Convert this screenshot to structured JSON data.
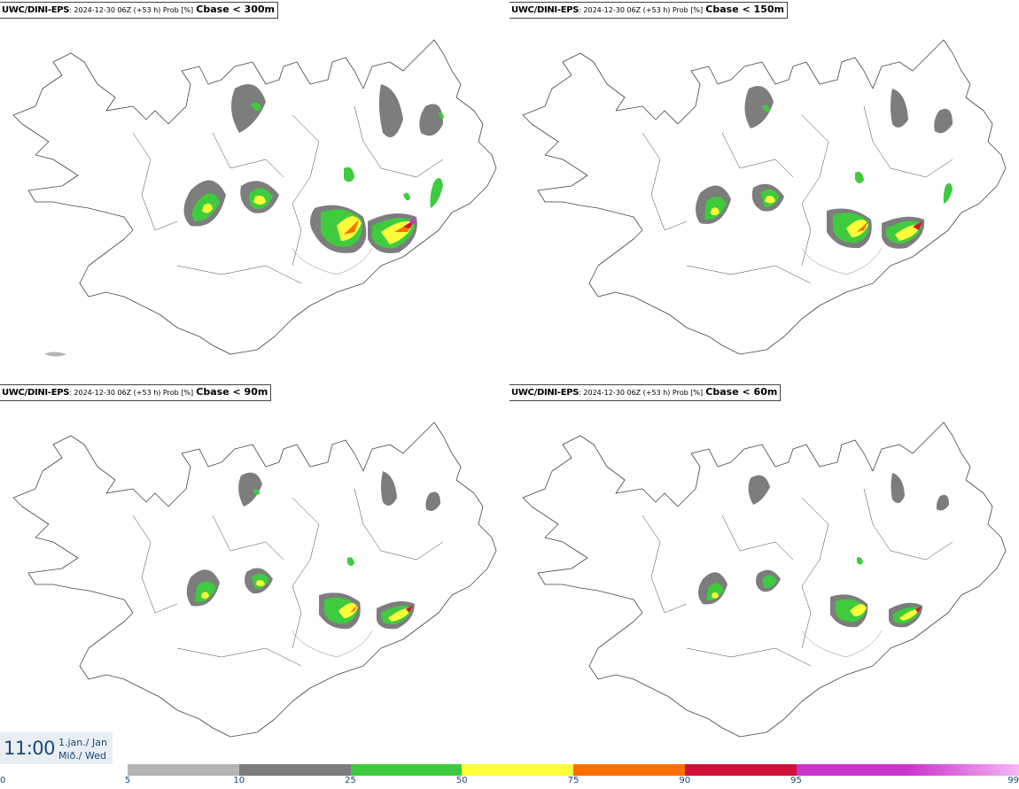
{
  "panels": [
    {
      "model": "UWC/DINI-EPS",
      "meta": ": 2024-12-30 06Z (+53 h) Prob [%]",
      "field": "Cbase < 300m"
    },
    {
      "model": "UWC/DINI-EPS",
      "meta": ": 2024-12-30 06Z (+53 h) Prob [%]",
      "field": "Cbase < 150m"
    },
    {
      "model": "UWC/DINI-EPS",
      "meta": ": 2024-12-30 06Z (+53 h) Prob [%]",
      "field": "Cbase < 90m"
    },
    {
      "model": "UWC/DINI-EPS",
      "meta": ": 2024-12-30 06Z (+53 h) Prob [%]",
      "field": "Cbase < 60m"
    }
  ],
  "time": {
    "clock": "11:00",
    "date_line1": "1.jan./ Jan",
    "date_line2": "Mið./ Wed"
  },
  "colorbar": {
    "colors": [
      "#b4b4b4",
      "#7d7d7d",
      "#3ecb3e",
      "#ffff3a",
      "#ff6e00",
      "#d2113a",
      "#cc33cc",
      "#f6b6f6"
    ],
    "ticks": [
      "0",
      "5",
      "10",
      "25",
      "50",
      "75",
      "90",
      "95",
      "99"
    ]
  },
  "land_color": "#ffffff",
  "coast_color": "#444444"
}
